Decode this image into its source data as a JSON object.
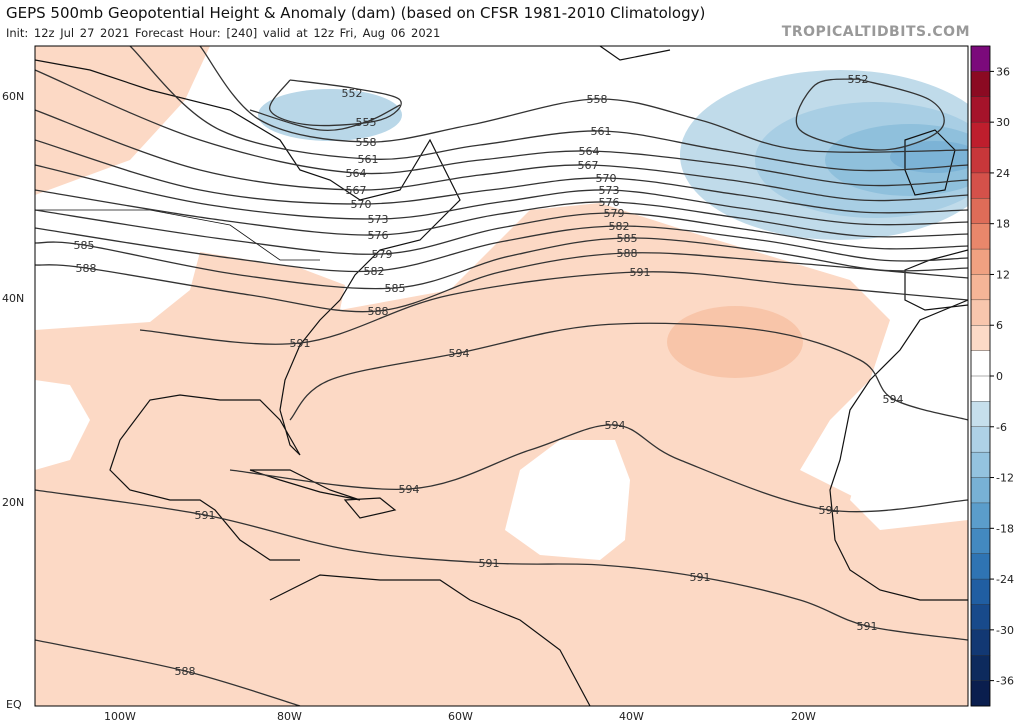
{
  "header": {
    "title": "GEPS 500mb Geopotential Height & Anomaly (dam) (based on CFSR 1981-2010 Climatology)",
    "subtitle": "Init: 12z Jul 27 2021   Forecast Hour: [240]   valid at 12z Fri, Aug 06 2021",
    "brand": "TROPICALTIDBITS.COM"
  },
  "map": {
    "lat_labels": [
      "60N",
      "40N",
      "20N",
      "EQ"
    ],
    "lon_labels": [
      "100W",
      "80W",
      "60W",
      "40W",
      "20W"
    ],
    "contour_color": "#333333",
    "contour_labels": [
      "552",
      "555",
      "558",
      "561",
      "564",
      "567",
      "570",
      "573",
      "576",
      "579",
      "582",
      "585",
      "588",
      "558",
      "561",
      "564",
      "567",
      "570",
      "573",
      "576",
      "579",
      "582",
      "585",
      "588",
      "591",
      "585",
      "588",
      "591",
      "594",
      "594",
      "594",
      "594",
      "594",
      "591",
      "591",
      "591",
      "591",
      "588",
      "552"
    ]
  },
  "colorbar": {
    "ticks": [
      "36",
      "30",
      "24",
      "18",
      "12",
      "6",
      "0",
      "-6",
      "-12",
      "-18",
      "-24",
      "-30",
      "-36"
    ],
    "colors": [
      "#7b0a7b",
      "#8b0a22",
      "#a5132a",
      "#be1e2d",
      "#c8373a",
      "#d4514a",
      "#de6c58",
      "#e9876b",
      "#f0a181",
      "#f5b597",
      "#f8c6ad",
      "#fcdac7",
      "#ffffff",
      "#ffffff",
      "#c6dfec",
      "#aed1e6",
      "#94c3df",
      "#78b1d5",
      "#5b9dcb",
      "#4389c0",
      "#2f74b3",
      "#205ea2",
      "#184a8b",
      "#123873",
      "#0d2a5d",
      "#0a1e4e"
    ]
  }
}
